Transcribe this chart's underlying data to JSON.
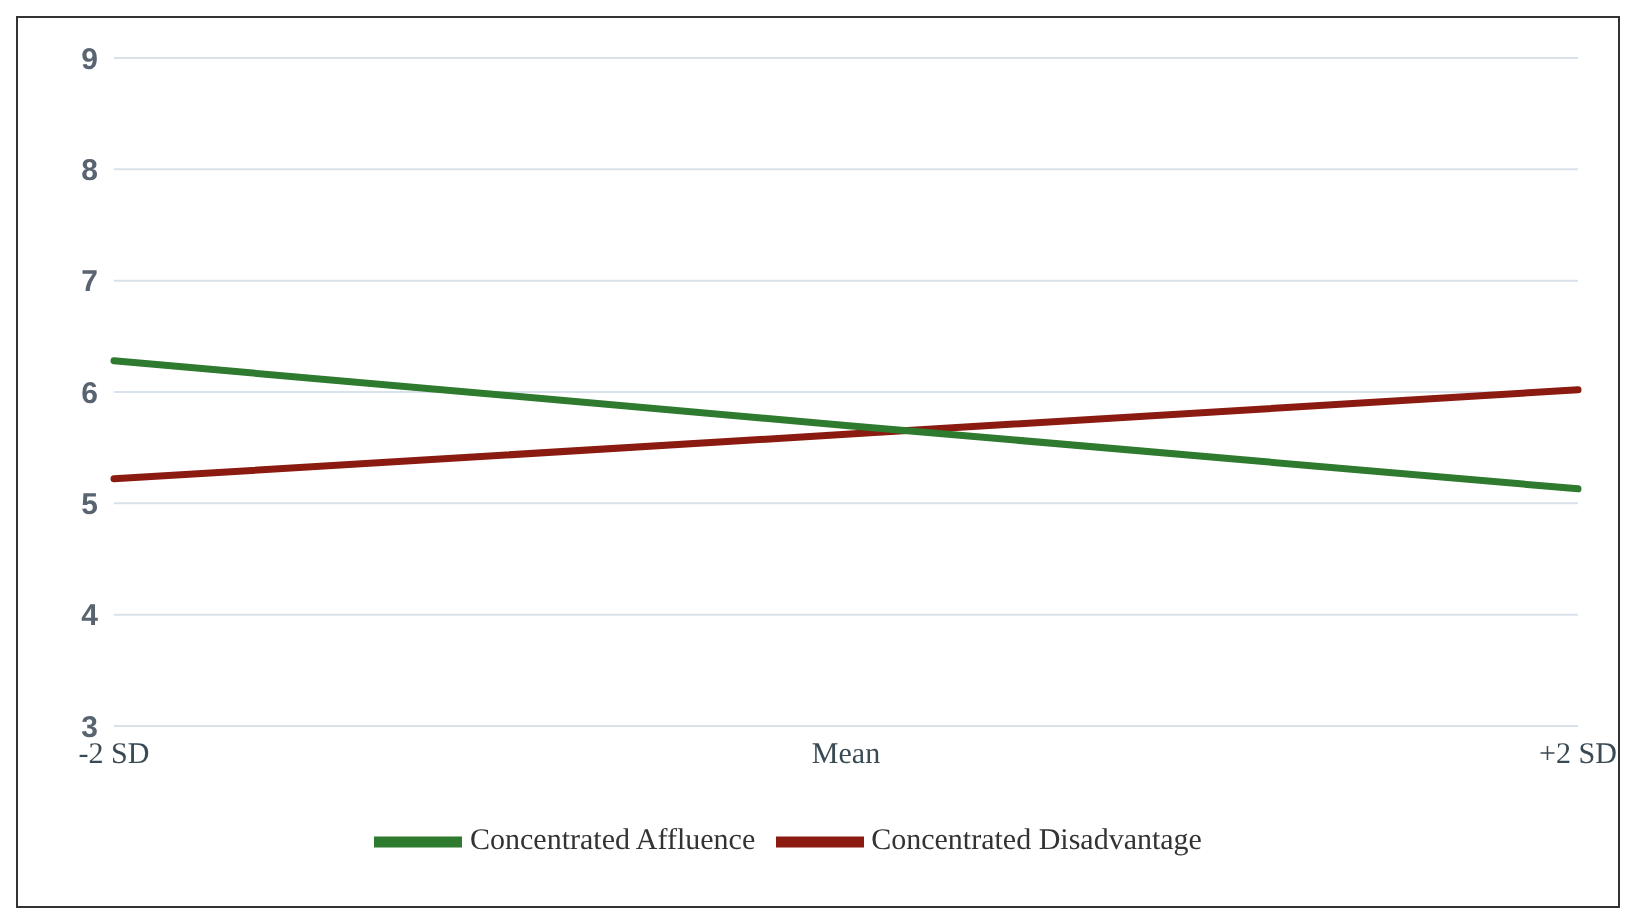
{
  "chart_data": {
    "type": "line",
    "categories": [
      "-2 SD",
      "Mean",
      "+2 SD"
    ],
    "series": [
      {
        "name": "Concentrated Disadvantage",
        "color": "#8b1a10",
        "values": [
          5.22,
          5.62,
          6.02
        ]
      },
      {
        "name": "Concentrated Affluence",
        "color": "#2e7a2e",
        "values": [
          6.28,
          5.7,
          5.13
        ]
      }
    ],
    "ylim": [
      3,
      9
    ],
    "yticks": [
      3,
      4,
      5,
      6,
      7,
      8,
      9
    ],
    "grid": "y",
    "legend": "bottom",
    "marker": "none"
  }
}
